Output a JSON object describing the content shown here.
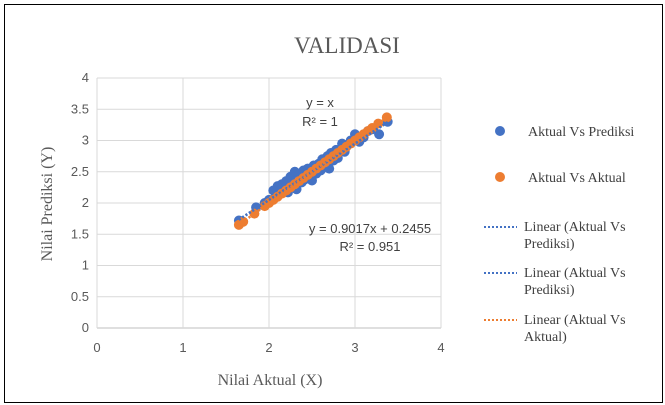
{
  "chart_data": {
    "type": "scatter",
    "title": "VALIDASI",
    "xlabel": "Nilai Aktual (X)",
    "ylabel": "Nilai Prediksi (Y)",
    "xlim": [
      0,
      4
    ],
    "ylim": [
      0,
      4
    ],
    "x_ticks": [
      "0",
      "1",
      "2",
      "3",
      "4"
    ],
    "y_ticks": [
      "0",
      "0.5",
      "1",
      "1.5",
      "2",
      "2.5",
      "3",
      "3.5",
      "4"
    ],
    "grid": true,
    "legend_position": "right",
    "colors": {
      "blue": "#4472C4",
      "orange": "#ED7D31",
      "grid": "#D9D9D9"
    },
    "series": [
      {
        "name": "Aktual Vs Prediksi",
        "color": "#4472C4",
        "points": [
          [
            1.65,
            1.72
          ],
          [
            1.85,
            1.93
          ],
          [
            1.95,
            2.0
          ],
          [
            2.0,
            2.05
          ],
          [
            2.05,
            2.2
          ],
          [
            2.08,
            2.12
          ],
          [
            2.1,
            2.27
          ],
          [
            2.12,
            2.15
          ],
          [
            2.15,
            2.3
          ],
          [
            2.18,
            2.22
          ],
          [
            2.2,
            2.35
          ],
          [
            2.22,
            2.17
          ],
          [
            2.25,
            2.42
          ],
          [
            2.28,
            2.3
          ],
          [
            2.3,
            2.5
          ],
          [
            2.32,
            2.22
          ],
          [
            2.35,
            2.45
          ],
          [
            2.38,
            2.33
          ],
          [
            2.4,
            2.52
          ],
          [
            2.42,
            2.38
          ],
          [
            2.45,
            2.55
          ],
          [
            2.48,
            2.4
          ],
          [
            2.5,
            2.36
          ],
          [
            2.52,
            2.6
          ],
          [
            2.55,
            2.47
          ],
          [
            2.58,
            2.63
          ],
          [
            2.6,
            2.52
          ],
          [
            2.62,
            2.7
          ],
          [
            2.65,
            2.58
          ],
          [
            2.68,
            2.75
          ],
          [
            2.7,
            2.55
          ],
          [
            2.72,
            2.8
          ],
          [
            2.75,
            2.68
          ],
          [
            2.78,
            2.85
          ],
          [
            2.8,
            2.72
          ],
          [
            2.85,
            2.95
          ],
          [
            2.88,
            2.82
          ],
          [
            2.9,
            2.9
          ],
          [
            2.95,
            3.0
          ],
          [
            3.0,
            3.1
          ],
          [
            3.05,
            2.98
          ],
          [
            3.1,
            3.05
          ],
          [
            3.15,
            3.15
          ],
          [
            3.2,
            3.18
          ],
          [
            3.28,
            3.1
          ],
          [
            3.38,
            3.3
          ]
        ]
      },
      {
        "name": "Aktual Vs Aktual",
        "color": "#ED7D31",
        "points": [
          [
            1.65,
            1.65
          ],
          [
            1.7,
            1.7
          ],
          [
            1.83,
            1.83
          ],
          [
            1.95,
            1.95
          ],
          [
            2.0,
            2.0
          ],
          [
            2.05,
            2.05
          ],
          [
            2.1,
            2.1
          ],
          [
            2.15,
            2.15
          ],
          [
            2.2,
            2.2
          ],
          [
            2.25,
            2.25
          ],
          [
            2.3,
            2.3
          ],
          [
            2.35,
            2.35
          ],
          [
            2.4,
            2.4
          ],
          [
            2.45,
            2.45
          ],
          [
            2.5,
            2.5
          ],
          [
            2.55,
            2.55
          ],
          [
            2.6,
            2.6
          ],
          [
            2.65,
            2.65
          ],
          [
            2.7,
            2.7
          ],
          [
            2.75,
            2.75
          ],
          [
            2.8,
            2.8
          ],
          [
            2.85,
            2.85
          ],
          [
            2.9,
            2.9
          ],
          [
            2.95,
            2.95
          ],
          [
            3.0,
            3.0
          ],
          [
            3.05,
            3.05
          ],
          [
            3.1,
            3.1
          ],
          [
            3.15,
            3.15
          ],
          [
            3.2,
            3.2
          ],
          [
            3.27,
            3.27
          ],
          [
            3.37,
            3.37
          ]
        ]
      }
    ],
    "trendlines": [
      {
        "name": "Linear (Aktual Vs Prediksi)",
        "color": "#4472C4",
        "slope": 0.9017,
        "intercept": 0.2455,
        "x_range": [
          1.65,
          3.38
        ]
      },
      {
        "name": "Linear (Aktual Vs Prediksi)",
        "color": "#4472C4",
        "slope": 0.9017,
        "intercept": 0.2455,
        "x_range": [
          1.65,
          3.38
        ]
      },
      {
        "name": "Linear (Aktual Vs Aktual)",
        "color": "#ED7D31",
        "slope": 1,
        "intercept": 0,
        "x_range": [
          1.65,
          3.38
        ]
      }
    ],
    "annotations": {
      "eq1": "y = x",
      "r2_1": "R² = 1",
      "eq2": "y = 0.9017x + 0.2455",
      "r2_2": "R² = 0.951"
    },
    "legend": {
      "s1": "Aktual Vs Prediksi",
      "s2": "Aktual Vs Aktual",
      "t1a": "Linear (Aktual Vs",
      "t1b": "Prediksi)",
      "t2a": "Linear (Aktual Vs",
      "t2b": "Prediksi)",
      "t3a": "Linear (Aktual Vs",
      "t3b": "Aktual)"
    }
  }
}
